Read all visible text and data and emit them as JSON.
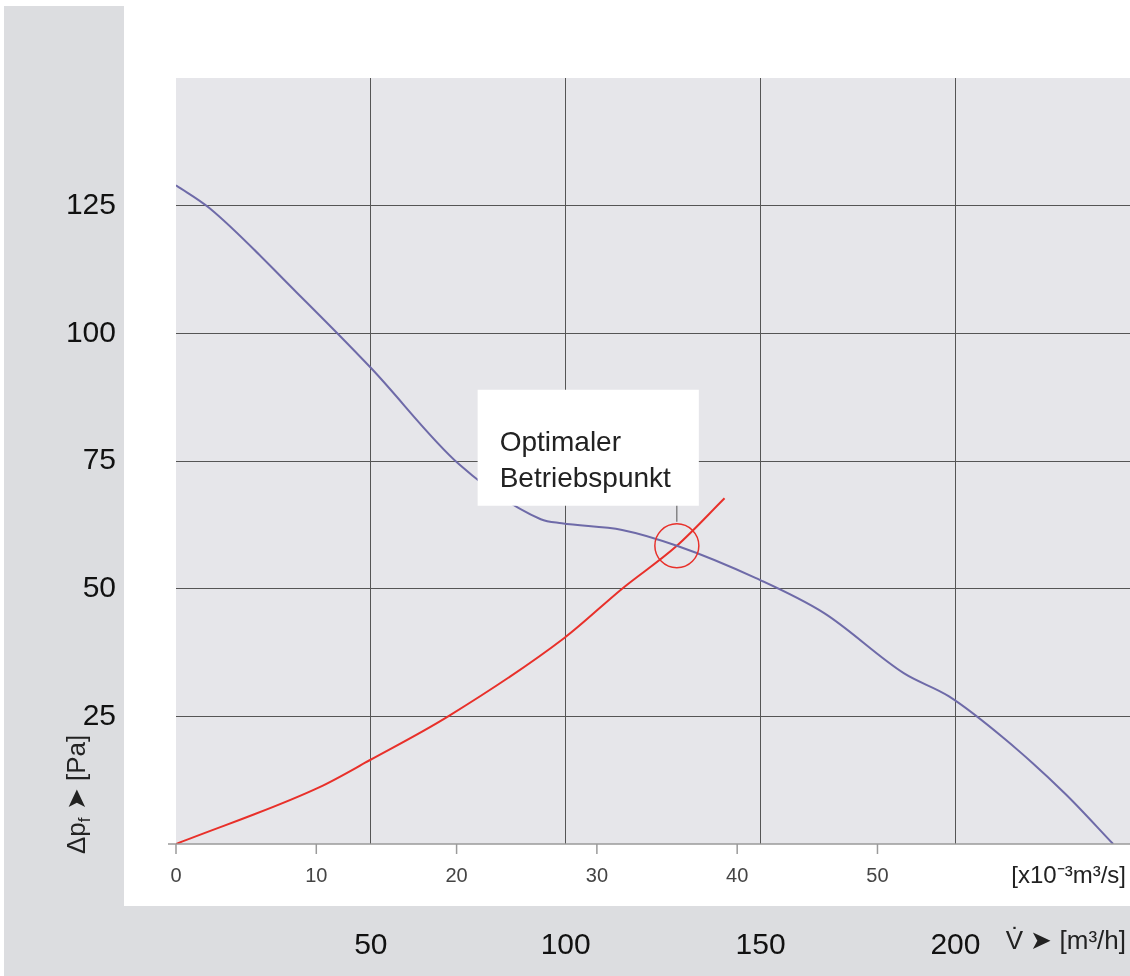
{
  "chart_data": {
    "type": "line",
    "xlabel": "[x10⁻³m³/s]",
    "x2label": "V̇ ➤ [m³/h]",
    "ylabel": "Δp$_{f}$ ➤ [Pa]",
    "xlim": [
      0,
      68
    ],
    "xticks": [
      0,
      10,
      20,
      30,
      40,
      50
    ],
    "x2lim": [
      0,
      244.8
    ],
    "x2ticks": [
      50,
      100,
      150,
      200
    ],
    "ylim": [
      0,
      150
    ],
    "yticks": [
      25,
      50,
      75,
      100,
      125
    ],
    "grid": true,
    "legend": false,
    "marker": "none",
    "line_style": "solid",
    "series": [
      {
        "color": "#6e6aa8",
        "x": [
          0,
          2.4,
          8.6,
          13.9,
          20.2,
          26,
          27.5,
          31.8,
          35.7,
          41.3,
          46.2,
          51.9,
          55.1,
          59.1,
          63.4,
          66.8
        ],
        "values": [
          129,
          124.5,
          108,
          93.2,
          74.3,
          63.6,
          62.8,
          61.5,
          58.4,
          52.1,
          45.2,
          33.4,
          28.9,
          20.5,
          9.8,
          0
        ]
      },
      {
        "color": "#e8302a",
        "x": [
          0,
          10.2,
          13.8,
          19.4,
          27.7,
          31.8,
          35.7,
          39.1
        ],
        "values": [
          0,
          11.1,
          16.4,
          25,
          40.4,
          50,
          58.4,
          67.7
        ]
      }
    ],
    "annotations": [
      {
        "text": "Optimaler Betriebspunkt",
        "x": 35.7,
        "y": 58.4
      }
    ]
  }
}
